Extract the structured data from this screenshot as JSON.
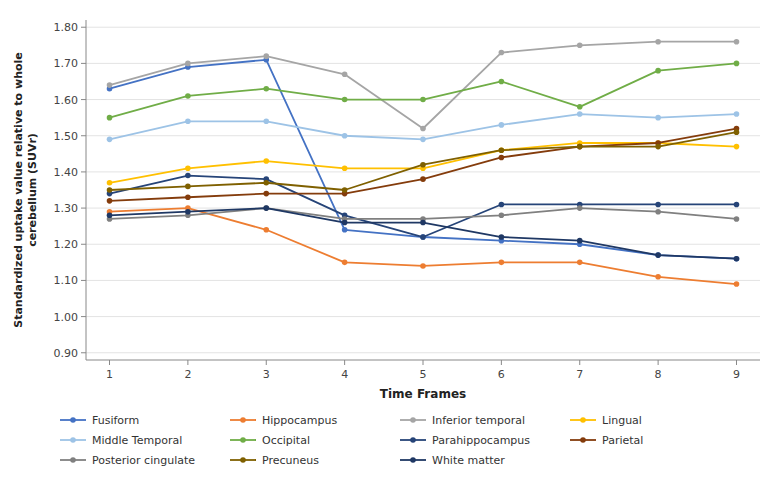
{
  "chart_data": {
    "type": "line",
    "xlabel": "Time Frames",
    "ylabel": "Standardized uptake value relative to whole\ncerebellum (SUVr)",
    "x": [
      1,
      2,
      3,
      4,
      5,
      6,
      7,
      8,
      9
    ],
    "xlim": [
      0.7,
      9.3
    ],
    "xticks": [
      1,
      2,
      3,
      4,
      5,
      6,
      7,
      8,
      9
    ],
    "ylim": [
      0.88,
      1.82
    ],
    "yticks": [
      {
        "value": 0.9,
        "label": "0.90"
      },
      {
        "value": 1.0,
        "label": "1.00"
      },
      {
        "value": 1.1,
        "label": "1.10"
      },
      {
        "value": 1.2,
        "label": "1.20"
      },
      {
        "value": 1.3,
        "label": "1.30"
      },
      {
        "value": 1.4,
        "label": "1.40"
      },
      {
        "value": 1.5,
        "label": "1.50"
      },
      {
        "value": 1.6,
        "label": "1.60"
      },
      {
        "value": 1.7,
        "label": "1.70"
      },
      {
        "value": 1.8,
        "label": "1.80"
      }
    ],
    "grid": true,
    "legend": "bottom",
    "marker": "circle",
    "series": [
      {
        "name": "Fusiform",
        "color": "#4472C4",
        "values": [
          1.63,
          1.69,
          1.71,
          1.24,
          1.22,
          1.21,
          1.2,
          1.17,
          1.16
        ]
      },
      {
        "name": "Hippocampus",
        "color": "#ED7D31",
        "values": [
          1.29,
          1.3,
          1.24,
          1.15,
          1.14,
          1.15,
          1.15,
          1.11,
          1.09
        ]
      },
      {
        "name": "Inferior temporal",
        "color": "#A5A5A5",
        "values": [
          1.64,
          1.7,
          1.72,
          1.67,
          1.52,
          1.73,
          1.75,
          1.76,
          1.76
        ]
      },
      {
        "name": "Lingual",
        "color": "#FFC000",
        "values": [
          1.37,
          1.41,
          1.43,
          1.41,
          1.41,
          1.46,
          1.48,
          1.48,
          1.47
        ]
      },
      {
        "name": "Middle Temporal",
        "color": "#9DC3E6",
        "values": [
          1.49,
          1.54,
          1.54,
          1.5,
          1.49,
          1.53,
          1.56,
          1.55,
          1.56
        ]
      },
      {
        "name": "Occipital",
        "color": "#70AD47",
        "values": [
          1.55,
          1.61,
          1.63,
          1.6,
          1.6,
          1.65,
          1.58,
          1.68,
          1.7
        ]
      },
      {
        "name": "Parahippocampus",
        "color": "#264478",
        "values": [
          1.34,
          1.39,
          1.38,
          1.28,
          1.22,
          1.31,
          1.31,
          1.31,
          1.31
        ]
      },
      {
        "name": "Parietal",
        "color": "#843C0C",
        "values": [
          1.32,
          1.33,
          1.34,
          1.34,
          1.38,
          1.44,
          1.47,
          1.48,
          1.52
        ]
      },
      {
        "name": "Posterior cingulate",
        "color": "#808080",
        "values": [
          1.27,
          1.28,
          1.3,
          1.27,
          1.27,
          1.28,
          1.3,
          1.29,
          1.27
        ]
      },
      {
        "name": "Precuneus",
        "color": "#7F6000",
        "values": [
          1.35,
          1.36,
          1.37,
          1.35,
          1.42,
          1.46,
          1.47,
          1.47,
          1.51
        ]
      },
      {
        "name": "White matter",
        "color": "#1F3864",
        "values": [
          1.28,
          1.29,
          1.3,
          1.26,
          1.26,
          1.22,
          1.21,
          1.17,
          1.16
        ]
      }
    ]
  }
}
